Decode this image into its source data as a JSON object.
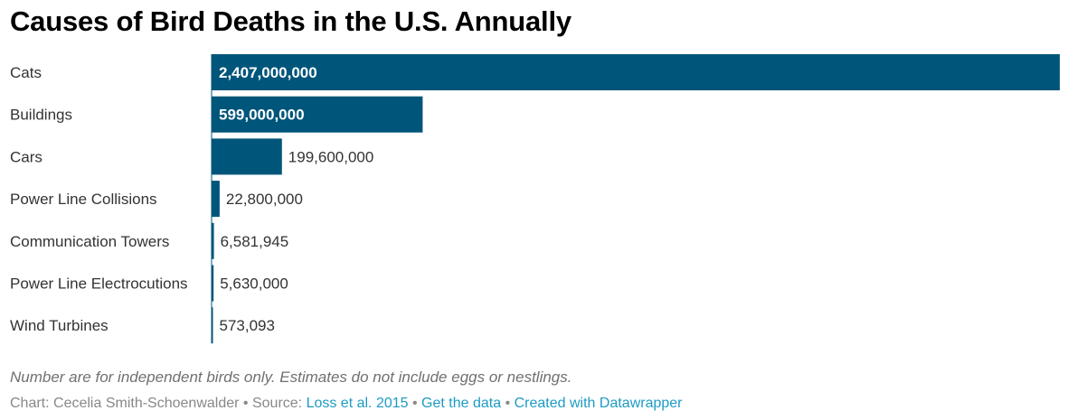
{
  "title": "Causes of Bird Deaths in the U.S. Annually",
  "notes": "Number are for independent birds only. Estimates do not include eggs or nestlings.",
  "byline": {
    "chart_prefix": "Chart: Cecelia Smith-Schoenwalder",
    "separator": "•",
    "source_prefix": "Source:",
    "source_link": "Loss et al. 2015",
    "get_data": "Get the data",
    "created_with": "Created with Datawrapper"
  },
  "colors": {
    "bar": "#00557a",
    "label_inside": "#ffffff",
    "label_outside": "#333333",
    "link": "#1d9bc4"
  },
  "chart_data": {
    "type": "bar",
    "orientation": "horizontal",
    "categories": [
      "Cats",
      "Buildings",
      "Cars",
      "Power Line Collisions",
      "Communication Towers",
      "Power Line Electrocutions",
      "Wind Turbines"
    ],
    "values": [
      2407000000,
      599000000,
      199600000,
      22800000,
      6581945,
      5630000,
      573093
    ],
    "value_labels": [
      "2,407,000,000",
      "599,000,000",
      "199,600,000",
      "22,800,000",
      "6,581,945",
      "5,630,000",
      "573,093"
    ],
    "xlim": [
      0,
      2407000000
    ],
    "title": "Causes of Bird Deaths in the U.S. Annually",
    "xlabel": "",
    "ylabel": "",
    "grid": false
  }
}
